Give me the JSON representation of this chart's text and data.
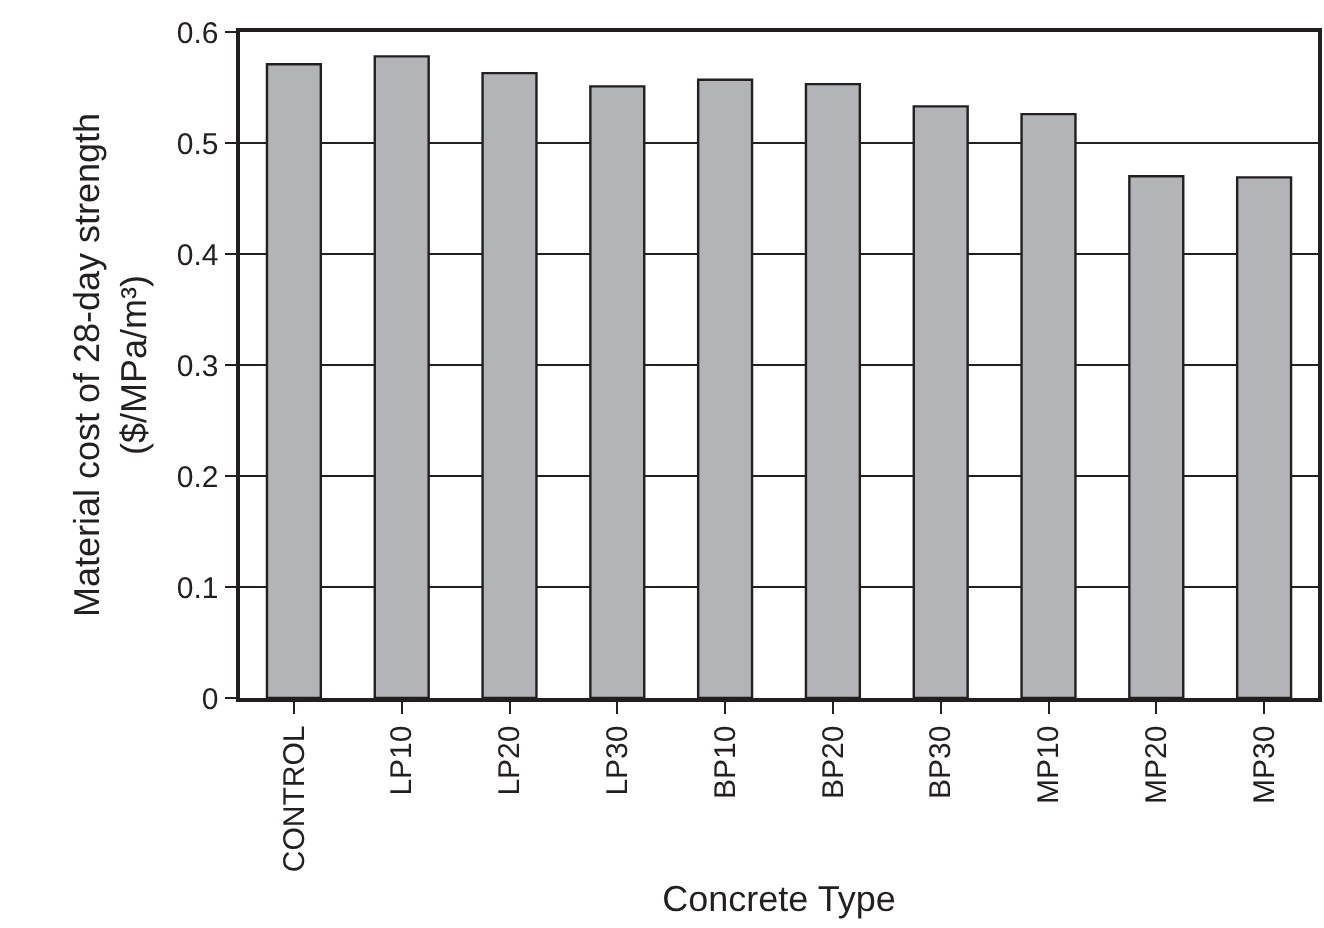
{
  "chart_data": {
    "type": "bar",
    "xlabel": "Concrete Type",
    "ylabel": "Material cost of 28-day strength\n($/MPa/m³)",
    "categories": [
      "CONTROL",
      "LP10",
      "LP20",
      "LP30",
      "BP10",
      "BP20",
      "BP30",
      "MP10",
      "MP20",
      "MP30"
    ],
    "values": [
      0.571,
      0.578,
      0.563,
      0.551,
      0.557,
      0.553,
      0.533,
      0.526,
      0.47,
      0.469
    ],
    "color": "#b3b4b8",
    "ylim": [
      0,
      0.6
    ],
    "yticks": [
      {
        "value": 0,
        "label": "0"
      },
      0.1,
      0.2,
      0.3,
      0.4,
      0.5,
      0.6
    ],
    "grid": "y"
  }
}
